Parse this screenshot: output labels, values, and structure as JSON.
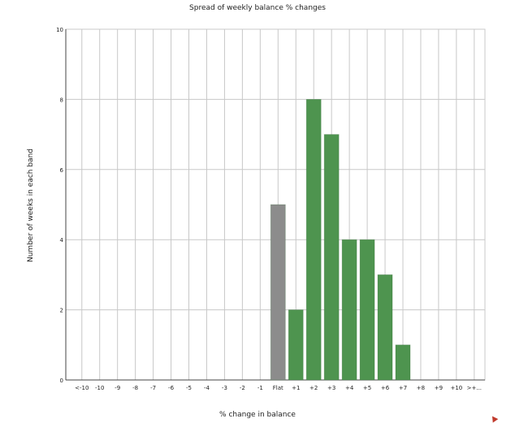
{
  "chart_data": {
    "type": "bar",
    "title": "Spread of weekly balance % changes",
    "xlabel": "% change in balance",
    "ylabel": "Number of weeks in each band",
    "categories": [
      "<-10",
      "-10",
      "-9",
      "-8",
      "-7",
      "-6",
      "-5",
      "-4",
      "-3",
      "-2",
      "-1",
      "Flat",
      "+1",
      "+2",
      "+3",
      "+4",
      "+5",
      "+6",
      "+7",
      "+8",
      "+9",
      "+10",
      ">+..."
    ],
    "values": [
      0,
      0,
      0,
      0,
      0,
      0,
      0,
      0,
      0,
      0,
      0,
      5,
      2,
      8,
      7,
      4,
      4,
      3,
      1,
      0,
      0,
      0,
      0
    ],
    "ylim": [
      0,
      10
    ],
    "yticks": [
      0,
      2,
      4,
      6,
      8,
      10
    ],
    "grid": true,
    "colors": {
      "flat": "#8c8c8c",
      "positive": "#4e944f",
      "grid": "#c8c8c8",
      "axis": "#444444"
    }
  }
}
